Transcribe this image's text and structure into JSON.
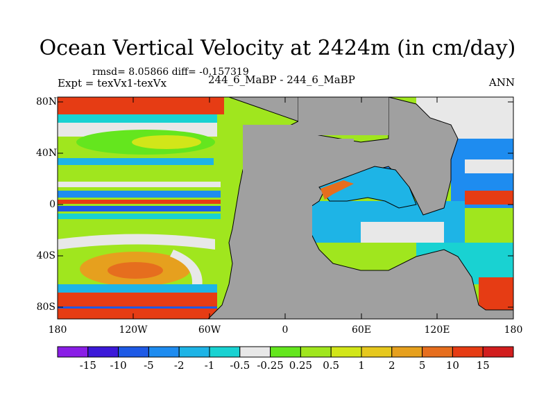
{
  "title": "Ocean Vertical Velocity at 2424m (in cm/day)",
  "stats": "rmsd= 8.05866 diff= -0.157319",
  "experiment": "Expt = texVx1-texVx",
  "case": "244_6_MaBP - 244_6_MaBP",
  "season": "ANN",
  "y_axis": [
    {
      "label": "80N",
      "lat": 80
    },
    {
      "label": "40N",
      "lat": 40
    },
    {
      "label": "0",
      "lat": 0
    },
    {
      "label": "40S",
      "lat": -40
    },
    {
      "label": "80S",
      "lat": -80
    }
  ],
  "x_axis": [
    {
      "label": "180",
      "lon": -180
    },
    {
      "label": "120W",
      "lon": -120
    },
    {
      "label": "60W",
      "lon": -60
    },
    {
      "label": "0",
      "lon": 0
    },
    {
      "label": "60E",
      "lon": 60
    },
    {
      "label": "120E",
      "lon": 120
    },
    {
      "label": "180",
      "lon": 180
    }
  ],
  "colorbar": {
    "levels": [
      "-15",
      "-10",
      "-5",
      "-2",
      "-1",
      "-0.5",
      "-0.25",
      "0.25",
      "0.5",
      "1",
      "2",
      "5",
      "10",
      "15"
    ],
    "colors": [
      "#8a1ee6",
      "#3c19d9",
      "#1e5ae6",
      "#1e8cf0",
      "#1eb4e6",
      "#19d2d2",
      "#e8e8e8",
      "#64e61e",
      "#a0e61e",
      "#d2e619",
      "#e6c81e",
      "#e6a01e",
      "#e66e1e",
      "#e63c14",
      "#d21e1e"
    ]
  },
  "map_colors": {
    "land": "#a0a0a0",
    "coast": "#000000"
  }
}
